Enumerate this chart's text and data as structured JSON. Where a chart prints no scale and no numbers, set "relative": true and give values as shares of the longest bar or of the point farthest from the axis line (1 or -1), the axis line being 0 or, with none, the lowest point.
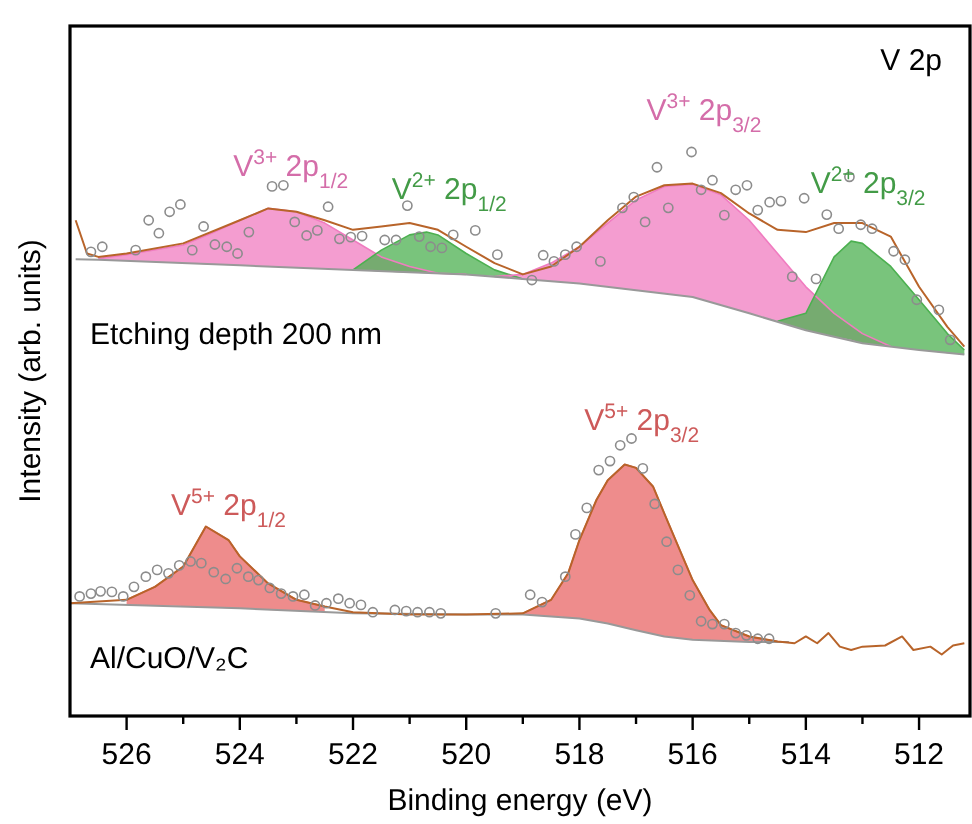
{
  "chart_data": {
    "type": "line",
    "title": "V 2p",
    "xlabel": "Binding energy (eV)",
    "ylabel": "Intensity (arb. units)",
    "relative": true,
    "grid": false,
    "tick_labels": "x",
    "xlim": [
      527,
      511.1
    ],
    "xticks": [
      526,
      {
        "value": 525,
        "label": null
      },
      524,
      {
        "value": 523,
        "label": null
      },
      522,
      {
        "value": 521,
        "label": null
      },
      520,
      {
        "value": 519,
        "label": null
      },
      518,
      {
        "value": 517,
        "label": null
      },
      516,
      {
        "value": 515,
        "label": null
      },
      514,
      {
        "value": 513,
        "label": null
      },
      512
    ],
    "annotations": [
      {
        "text": "V$^{3+}$ 2p$_{1/2}$",
        "x": 523.1,
        "y": 0.9
      },
      {
        "text": "V$^{2+}$ 2p$_{1/2}$",
        "x": 520.3,
        "y": 0.86
      },
      {
        "text": "V$^{3+}$ 2p$_{3/2}$",
        "x": 515.8,
        "y": 1.0
      },
      {
        "text": "V$^{2+}$ 2p$_{3/2}$",
        "x": 512.9,
        "y": 0.87
      },
      {
        "text": "V$^{5+}$ 2p$_{1/2}$",
        "x": 524.2,
        "y": 0.3
      },
      {
        "text": "V$^{5+}$ 2p$_{3/2}$",
        "x": 516.9,
        "y": 0.45
      },
      "Etching depth 200 nm",
      "Al/CuO/V₂C"
    ],
    "series": [
      {
        "type": "line",
        "color": "#f07cc0",
        "x": [
          526.5,
          526,
          525,
          524.5,
          524,
          523.5,
          523,
          522.5,
          522,
          521.5,
          521,
          520.5,
          520
        ],
        "values": [
          0.811,
          0.818,
          0.835,
          0.856,
          0.879,
          0.9,
          0.894,
          0.874,
          0.844,
          0.814,
          0.797,
          0.785,
          0.783
        ],
        "upper": [
          0.811,
          0.818,
          0.835,
          0.856,
          0.879,
          0.9,
          0.894,
          0.874,
          0.844,
          0.814,
          0.797,
          0.785,
          0.783
        ],
        "lower": [
          0.809,
          0.807,
          0.803,
          0.8,
          0.799,
          0.797,
          0.795,
          0.793,
          0.791,
          0.788,
          0.786,
          0.785,
          0.783
        ]
      },
      {
        "type": "line",
        "color": "#4cb050",
        "x": [
          522,
          521.5,
          521,
          520.7,
          520.5,
          520,
          519.5,
          519
        ],
        "values": [
          0.791,
          0.826,
          0.853,
          0.858,
          0.853,
          0.82,
          0.791,
          0.775
        ],
        "upper": [
          0.791,
          0.826,
          0.853,
          0.858,
          0.853,
          0.82,
          0.791,
          0.775
        ],
        "lower": [
          0.791,
          0.788,
          0.786,
          0.785,
          0.785,
          0.783,
          0.78,
          0.775
        ]
      },
      {
        "type": "line",
        "color": "#f07cc0",
        "x": [
          519.5,
          519,
          518.5,
          518,
          517.5,
          517,
          516.5,
          516,
          515.5,
          515,
          514.5,
          514,
          513.5,
          513,
          512.5
        ],
        "values": [
          0.779,
          0.783,
          0.803,
          0.832,
          0.874,
          0.915,
          0.939,
          0.943,
          0.924,
          0.879,
          0.82,
          0.761,
          0.714,
          0.678,
          0.655
        ],
        "upper": [
          0.779,
          0.783,
          0.803,
          0.832,
          0.874,
          0.915,
          0.939,
          0.943,
          0.924,
          0.879,
          0.82,
          0.761,
          0.714,
          0.678,
          0.655
        ],
        "lower": [
          0.779,
          0.775,
          0.771,
          0.767,
          0.761,
          0.755,
          0.749,
          0.743,
          0.729,
          0.714,
          0.7,
          0.684,
          0.673,
          0.661,
          0.655
        ]
      },
      {
        "type": "line",
        "color": "#4cb050",
        "x": [
          514.5,
          514,
          513.5,
          513.2,
          513,
          512.5,
          512,
          511.5,
          511.2
        ],
        "values": [
          0.7,
          0.714,
          0.814,
          0.842,
          0.838,
          0.797,
          0.738,
          0.678,
          0.649
        ],
        "upper": [
          0.7,
          0.714,
          0.814,
          0.842,
          0.838,
          0.797,
          0.738,
          0.678,
          0.649
        ],
        "lower": [
          0.7,
          0.684,
          0.673,
          0.667,
          0.661,
          0.655,
          0.649,
          0.643,
          0.641
        ]
      },
      {
        "type": "line",
        "color": "#e86666",
        "x": [
          526,
          525.5,
          525,
          524.6,
          524.2,
          524,
          523.5,
          523,
          522.5
        ],
        "values": [
          0.206,
          0.229,
          0.265,
          0.336,
          0.312,
          0.283,
          0.235,
          0.206,
          0.194
        ],
        "upper": [
          0.206,
          0.229,
          0.265,
          0.336,
          0.312,
          0.283,
          0.235,
          0.206,
          0.194
        ],
        "lower": [
          0.197,
          0.196,
          0.195,
          0.193,
          0.191,
          0.191,
          0.188,
          0.186,
          0.184
        ]
      },
      {
        "type": "line",
        "color": "#e86666",
        "x": [
          519,
          518.5,
          518.2,
          518,
          517.7,
          517.5,
          517.2,
          517,
          516.7,
          516.5,
          516.2,
          516,
          515.7,
          515.5,
          515,
          514.5
        ],
        "values": [
          0.182,
          0.206,
          0.253,
          0.312,
          0.383,
          0.418,
          0.446,
          0.44,
          0.407,
          0.359,
          0.288,
          0.241,
          0.188,
          0.161,
          0.141,
          0.132
        ],
        "upper": [
          0.182,
          0.206,
          0.253,
          0.312,
          0.383,
          0.418,
          0.446,
          0.44,
          0.407,
          0.359,
          0.288,
          0.241,
          0.188,
          0.161,
          0.141,
          0.132
        ],
        "lower": [
          0.18,
          0.177,
          0.175,
          0.173,
          0.168,
          0.164,
          0.157,
          0.152,
          0.145,
          0.141,
          0.137,
          0.135,
          0.134,
          0.133,
          0.131,
          0.131
        ]
      },
      {
        "color": "#999999",
        "x": [
          526.9,
          526.5,
          524,
          522,
          520,
          519,
          518,
          517,
          516,
          515,
          514,
          513,
          512,
          511.2
        ],
        "values": [
          0.81,
          0.809,
          0.799,
          0.791,
          0.783,
          0.775,
          0.767,
          0.755,
          0.743,
          0.714,
          0.684,
          0.661,
          0.649,
          0.641
        ]
      },
      {
        "color": "#999999",
        "x": [
          527,
          524,
          522,
          520,
          519,
          518,
          517.5,
          517,
          516.5,
          516,
          515,
          514.3
        ],
        "values": [
          0.2,
          0.191,
          0.182,
          0.18,
          0.18,
          0.173,
          0.164,
          0.152,
          0.141,
          0.135,
          0.131,
          0.131
        ]
      },
      {
        "color": "#b8642a",
        "x": [
          526.9,
          526.7,
          526.5,
          526,
          525,
          524,
          523.5,
          523,
          522.5,
          522,
          521.5,
          521,
          520.5,
          520,
          519.5,
          519,
          518.5,
          518,
          517.5,
          517,
          516.5,
          516,
          515.5,
          515,
          514.5,
          514,
          513.5,
          513,
          512.5,
          512,
          511.5,
          511.2
        ],
        "values": [
          0.879,
          0.82,
          0.814,
          0.82,
          0.838,
          0.879,
          0.9,
          0.894,
          0.879,
          0.862,
          0.868,
          0.874,
          0.862,
          0.832,
          0.803,
          0.783,
          0.797,
          0.832,
          0.879,
          0.921,
          0.941,
          0.944,
          0.927,
          0.891,
          0.862,
          0.858,
          0.874,
          0.874,
          0.85,
          0.761,
          0.69,
          0.655
        ]
      },
      {
        "color": "#b8642a",
        "x": [
          527,
          526,
          525.5,
          525,
          524.6,
          524.2,
          524,
          523.5,
          523,
          522.5,
          522,
          521,
          520,
          519,
          518.5,
          518.2,
          518,
          517.7,
          517.5,
          517.2,
          517,
          516.7,
          516.5,
          516.2,
          516,
          515.7,
          515.5,
          515,
          514.5,
          514.2,
          514,
          513.8,
          513.6,
          513.4,
          513.2,
          513,
          512.6,
          512.3,
          512.1,
          511.8,
          511.6,
          511.4,
          511.2
        ],
        "values": [
          0.2,
          0.206,
          0.229,
          0.265,
          0.336,
          0.312,
          0.283,
          0.235,
          0.206,
          0.194,
          0.184,
          0.18,
          0.18,
          0.182,
          0.206,
          0.253,
          0.312,
          0.383,
          0.418,
          0.446,
          0.44,
          0.407,
          0.359,
          0.288,
          0.241,
          0.188,
          0.161,
          0.141,
          0.132,
          0.129,
          0.141,
          0.129,
          0.147,
          0.123,
          0.117,
          0.123,
          0.125,
          0.141,
          0.117,
          0.123,
          0.109,
          0.125,
          0.129
        ]
      },
      {
        "type": "scatter",
        "color": "#8c8c8c",
        "marker": "circle",
        "x": [
          526.63,
          526.43,
          525.84,
          525.61,
          525.43,
          525.24,
          525.05,
          524.84,
          524.64,
          524.44,
          524.23,
          524.04,
          523.84,
          523.43,
          523.23,
          523.03,
          522.82,
          522.63,
          522.44,
          522.24,
          522.04,
          521.84,
          521.44,
          521.24,
          521.04,
          520.83,
          520.63,
          520.43,
          520.23,
          519.84,
          519.45,
          518.84,
          518.64,
          518.45,
          518.25,
          518.05,
          517.63,
          517.24,
          517.04,
          516.84,
          516.63,
          516.43,
          516.02,
          515.85,
          515.65,
          515.44,
          515.24,
          515.04,
          514.85,
          514.64,
          514.44,
          514.24,
          514.03,
          513.82,
          513.63,
          513.42,
          513.23,
          513.03,
          512.83,
          512.45,
          512.25,
          512.04,
          511.65,
          511.45
        ],
        "values": [
          0.823,
          0.832,
          0.826,
          0.879,
          0.856,
          0.894,
          0.907,
          0.826,
          0.868,
          0.836,
          0.832,
          0.82,
          0.858,
          0.939,
          0.941,
          0.876,
          0.852,
          0.861,
          0.903,
          0.846,
          0.849,
          0.851,
          0.844,
          0.844,
          0.905,
          0.85,
          0.832,
          0.83,
          0.853,
          0.861,
          0.818,
          0.773,
          0.817,
          0.806,
          0.818,
          0.832,
          0.806,
          0.901,
          0.92,
          0.876,
          0.973,
          0.901,
          1.0,
          0.933,
          0.95,
          0.888,
          0.933,
          0.941,
          0.897,
          0.911,
          0.913,
          0.779,
          0.918,
          0.775,
          0.889,
          0.864,
          0.956,
          0.871,
          0.864,
          0.824,
          0.809,
          0.738,
          0.72,
          0.667
        ]
      },
      {
        "type": "scatter",
        "color": "#8c8c8c",
        "marker": "circle",
        "x": [
          526.83,
          526.63,
          526.46,
          526.26,
          526.06,
          525.87,
          525.66,
          525.46,
          525.26,
          525.07,
          524.87,
          524.68,
          524.46,
          524.25,
          524.05,
          523.85,
          523.67,
          523.47,
          523.27,
          523.06,
          522.86,
          522.67,
          522.47,
          522.26,
          522.06,
          521.86,
          521.65,
          521.26,
          521.06,
          520.86,
          520.65,
          520.45,
          519.48,
          518.87,
          518.66,
          518.25,
          518.07,
          517.87,
          517.66,
          517.46,
          517.28,
          517.08,
          516.88,
          516.67,
          516.46,
          516.26,
          516.05,
          515.85,
          515.65,
          515.44,
          515.24,
          515.05,
          514.85,
          514.65
        ],
        "values": [
          0.212,
          0.217,
          0.221,
          0.22,
          0.212,
          0.229,
          0.247,
          0.259,
          0.253,
          0.267,
          0.274,
          0.271,
          0.255,
          0.243,
          0.262,
          0.247,
          0.241,
          0.227,
          0.217,
          0.212,
          0.215,
          0.196,
          0.2,
          0.208,
          0.2,
          0.197,
          0.184,
          0.188,
          0.186,
          0.184,
          0.184,
          0.182,
          0.182,
          0.215,
          0.202,
          0.247,
          0.322,
          0.369,
          0.436,
          0.452,
          0.48,
          0.492,
          0.439,
          0.376,
          0.309,
          0.259,
          0.214,
          0.168,
          0.163,
          0.163,
          0.147,
          0.143,
          0.137,
          0.137
        ]
      }
    ]
  }
}
